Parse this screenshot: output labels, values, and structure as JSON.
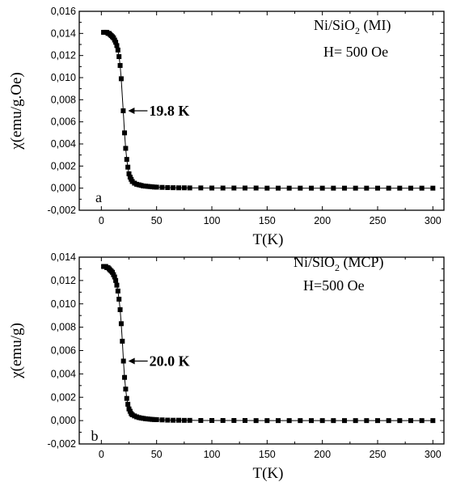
{
  "chart_data": [
    {
      "type": "scatter",
      "panel_label": "a",
      "xlabel": "T(K)",
      "ylabel": "χ(emu/g.Oe)",
      "xlim": [
        -20,
        310
      ],
      "ylim": [
        -0.002,
        0.016
      ],
      "xticks": [
        0,
        50,
        100,
        150,
        200,
        250,
        300
      ],
      "yticks": [
        -0.002,
        0.0,
        0.002,
        0.004,
        0.006,
        0.008,
        0.01,
        0.012,
        0.014,
        0.016
      ],
      "ytick_labels": [
        "-0,002",
        "0,000",
        "0,002",
        "0,004",
        "0,006",
        "0,008",
        "0,010",
        "0,012",
        "0,014",
        "0,016"
      ],
      "xtick_labels": [
        "0",
        "50",
        "100",
        "150",
        "200",
        "250",
        "300"
      ],
      "annotation_lines": [
        "Ni/SiO",
        "2",
        " (MI)",
        "H= 500 Oe"
      ],
      "arrow_label": "19.8 K",
      "arrow_target": {
        "x": 19.8,
        "y": 0.007
      },
      "series": [
        {
          "x": [
            2,
            3,
            4,
            5,
            6,
            7,
            8,
            9,
            10,
            11,
            12,
            13,
            14,
            15,
            16,
            17,
            18,
            19.8,
            21,
            22,
            23,
            24,
            25,
            26,
            27,
            28,
            30,
            32,
            34,
            36,
            38,
            40,
            42,
            44,
            46,
            48,
            50,
            55,
            60,
            65,
            70,
            75,
            80,
            90,
            100,
            110,
            120,
            130,
            140,
            150,
            160,
            170,
            180,
            190,
            200,
            210,
            220,
            230,
            240,
            250,
            260,
            270,
            280,
            290,
            300
          ],
          "values": [
            0.0141,
            0.0141,
            0.0141,
            0.0141,
            0.014,
            0.014,
            0.0139,
            0.0138,
            0.0137,
            0.0136,
            0.0134,
            0.0132,
            0.0129,
            0.0125,
            0.0119,
            0.0111,
            0.0099,
            0.007,
            0.005,
            0.0036,
            0.0026,
            0.0019,
            0.0013,
            0.001,
            0.0008,
            0.0006,
            0.00045,
            0.00035,
            0.0003,
            0.00025,
            0.0002,
            0.00018,
            0.00016,
            0.00014,
            0.00012,
            0.0001,
            9e-05,
            7e-05,
            5e-05,
            4e-05,
            3e-05,
            3e-05,
            2e-05,
            2e-05,
            1e-05,
            1e-05,
            1e-05,
            1e-05,
            1e-05,
            0.0,
            0.0,
            0.0,
            0.0,
            0.0,
            0.0,
            0.0,
            0.0,
            0.0,
            0.0,
            0.0,
            0.0,
            0.0,
            0.0,
            0.0,
            0.0
          ]
        }
      ]
    },
    {
      "type": "scatter",
      "panel_label": "b",
      "xlabel": "T(K)",
      "ylabel": "χ(emu/g)",
      "xlim": [
        -20,
        310
      ],
      "ylim": [
        -0.002,
        0.014
      ],
      "xticks": [
        0,
        50,
        100,
        150,
        200,
        250,
        300
      ],
      "yticks": [
        -0.002,
        0.0,
        0.002,
        0.004,
        0.006,
        0.008,
        0.01,
        0.012,
        0.014
      ],
      "ytick_labels": [
        "-0,002",
        "0,000",
        "0,002",
        "0,004",
        "0,006",
        "0,008",
        "0,010",
        "0,012",
        "0,014"
      ],
      "xtick_labels": [
        "0",
        "50",
        "100",
        "150",
        "200",
        "250",
        "300"
      ],
      "annotation_lines": [
        "Ni/SiO",
        "2",
        " (MCP)",
        "H=500 Oe"
      ],
      "arrow_label": "20.0 K",
      "arrow_target": {
        "x": 20.0,
        "y": 0.0051
      },
      "series": [
        {
          "x": [
            2,
            3,
            4,
            5,
            6,
            7,
            8,
            9,
            10,
            11,
            12,
            13,
            14,
            15,
            16,
            17,
            18,
            19,
            20,
            21,
            22,
            23,
            24,
            25,
            26,
            27,
            28,
            30,
            32,
            34,
            36,
            38,
            40,
            42,
            44,
            46,
            48,
            50,
            55,
            60,
            65,
            70,
            75,
            80,
            90,
            100,
            110,
            120,
            130,
            140,
            150,
            160,
            170,
            180,
            190,
            200,
            210,
            220,
            230,
            240,
            250,
            260,
            270,
            280,
            290,
            300
          ],
          "values": [
            0.0132,
            0.0132,
            0.0132,
            0.0131,
            0.0131,
            0.013,
            0.0129,
            0.0128,
            0.0127,
            0.0125,
            0.0123,
            0.012,
            0.0116,
            0.0111,
            0.0104,
            0.0095,
            0.0083,
            0.0068,
            0.0051,
            0.0037,
            0.0027,
            0.0019,
            0.0014,
            0.001,
            0.0008,
            0.0006,
            0.0005,
            0.0004,
            0.00032,
            0.00026,
            0.00022,
            0.00019,
            0.00016,
            0.00014,
            0.00012,
            0.0001,
            9e-05,
            8e-05,
            6e-05,
            4e-05,
            3e-05,
            3e-05,
            2e-05,
            2e-05,
            1e-05,
            1e-05,
            1e-05,
            1e-05,
            1e-05,
            0.0,
            0.0,
            0.0,
            0.0,
            0.0,
            0.0,
            0.0,
            0.0,
            0.0,
            0.0,
            0.0,
            0.0,
            0.0,
            0.0,
            0.0,
            0.0,
            0.0
          ]
        }
      ]
    }
  ]
}
